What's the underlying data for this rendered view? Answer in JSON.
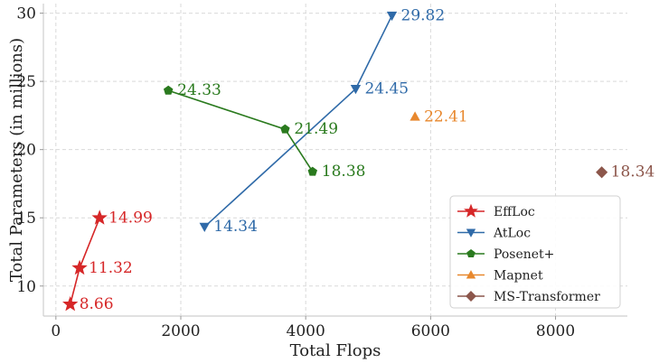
{
  "chart_data": {
    "type": "scatter",
    "xlabel": "Total Flops",
    "ylabel": "Total Parameters (in millions)",
    "xlim": [
      -200,
      9150
    ],
    "ylim": [
      7.8,
      30.7
    ],
    "xticks": [
      0,
      2000,
      4000,
      6000,
      8000
    ],
    "yticks": [
      10,
      15,
      20,
      25,
      30
    ],
    "grid": true,
    "legend_position": "bottom-right",
    "series": [
      {
        "name": "EffLoc",
        "color": "#d62728",
        "marker": "star",
        "connected": true,
        "points": [
          {
            "x": 230,
            "y": 8.66,
            "label": "8.66"
          },
          {
            "x": 380,
            "y": 11.32,
            "label": "11.32"
          },
          {
            "x": 700,
            "y": 14.99,
            "label": "14.99"
          }
        ]
      },
      {
        "name": "AtLoc",
        "color": "#2f6aa8",
        "marker": "triangle-down",
        "connected": true,
        "points": [
          {
            "x": 2380,
            "y": 14.34,
            "label": "14.34"
          },
          {
            "x": 4800,
            "y": 24.45,
            "label": "24.45"
          },
          {
            "x": 5380,
            "y": 29.82,
            "label": "29.82"
          }
        ]
      },
      {
        "name": "Posenet+",
        "color": "#2a7a1e",
        "marker": "pentagon",
        "connected": true,
        "points": [
          {
            "x": 1800,
            "y": 24.33,
            "label": "24.33"
          },
          {
            "x": 3670,
            "y": 21.49,
            "label": "21.49"
          },
          {
            "x": 4110,
            "y": 18.38,
            "label": "18.38"
          }
        ]
      },
      {
        "name": "Mapnet",
        "color": "#e8882e",
        "marker": "triangle-up",
        "connected": false,
        "points": [
          {
            "x": 5750,
            "y": 22.41,
            "label": "22.41"
          }
        ]
      },
      {
        "name": "MS-Transformer",
        "color": "#8c564b",
        "marker": "diamond",
        "connected": false,
        "points": [
          {
            "x": 8740,
            "y": 18.34,
            "label": "18.34"
          }
        ]
      }
    ]
  }
}
